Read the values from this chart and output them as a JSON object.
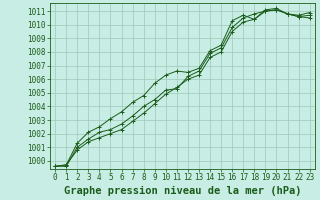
{
  "title": "Graphe pression niveau de la mer (hPa)",
  "bg_color": "#c8ede4",
  "line_color": "#1a5c1a",
  "marker_color": "#1a5c1a",
  "grid_color": "#9ec8ba",
  "xlim": [
    -0.5,
    23.5
  ],
  "ylim": [
    999.4,
    1011.6
  ],
  "xticks": [
    0,
    1,
    2,
    3,
    4,
    5,
    6,
    7,
    8,
    9,
    10,
    11,
    12,
    13,
    14,
    15,
    16,
    17,
    18,
    19,
    20,
    21,
    22,
    23
  ],
  "yticks": [
    1000,
    1001,
    1002,
    1003,
    1004,
    1005,
    1006,
    1007,
    1008,
    1009,
    1010,
    1011
  ],
  "series": [
    [
      999.6,
      999.6,
      1001.0,
      1001.6,
      1002.1,
      1002.3,
      1002.7,
      1003.3,
      1004.0,
      1004.5,
      1005.2,
      1005.3,
      1006.2,
      1006.6,
      1007.9,
      1008.3,
      1009.8,
      1010.5,
      1010.8,
      1011.0,
      1011.1,
      1010.8,
      1010.6,
      1010.7
    ],
    [
      999.6,
      999.7,
      1001.3,
      1002.1,
      1002.5,
      1003.1,
      1003.6,
      1004.3,
      1004.8,
      1005.7,
      1006.3,
      1006.6,
      1006.5,
      1006.8,
      1008.1,
      1008.5,
      1010.3,
      1010.7,
      1010.4,
      1011.1,
      1011.2,
      1010.8,
      1010.7,
      1010.9
    ],
    [
      999.6,
      999.7,
      1000.8,
      1001.4,
      1001.7,
      1002.0,
      1002.3,
      1002.9,
      1003.5,
      1004.2,
      1004.9,
      1005.4,
      1006.0,
      1006.3,
      1007.6,
      1008.0,
      1009.5,
      1010.2,
      1010.4,
      1011.0,
      1011.1,
      1010.8,
      1010.6,
      1010.5
    ]
  ],
  "tick_fontsize": 5.5,
  "title_fontsize": 7.5
}
